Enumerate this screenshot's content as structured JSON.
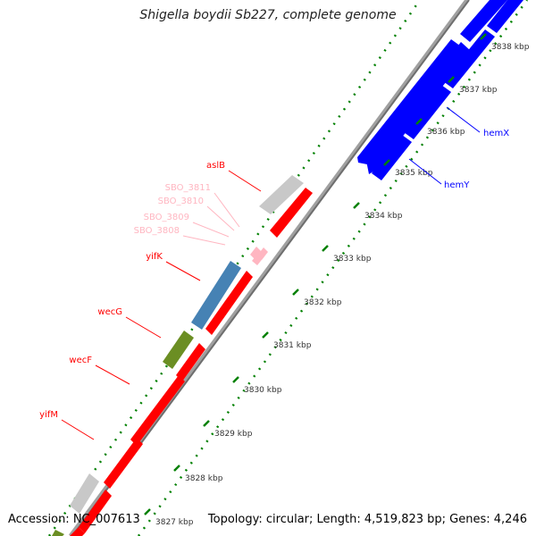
{
  "title": "Shigella boydii Sb227, complete genome",
  "accession": "Accession: NC_007613",
  "summary": "Topology: circular; Length: 4,519,823 bp; Genes: 4,246",
  "colors": {
    "red": "#ff0000",
    "blue": "#0000ff",
    "gray": "#c8c8c8",
    "steel": "#4682b4",
    "olive": "#6b8e23",
    "pink": "#ffb6c1",
    "dots": "#008000",
    "backbone": "#808080"
  },
  "ticks": [
    {
      "label": "3827 kbp"
    },
    {
      "label": "3828 kbp"
    },
    {
      "label": "3829 kbp"
    },
    {
      "label": "3830 kbp"
    },
    {
      "label": "3831 kbp"
    },
    {
      "label": "3832 kbp"
    },
    {
      "label": "3833 kbp"
    },
    {
      "label": "3834 kbp"
    },
    {
      "label": "3835 kbp"
    },
    {
      "label": "3836 kbp"
    },
    {
      "label": "3837 kbp"
    },
    {
      "label": "3838 kbp"
    }
  ],
  "gene_labels": [
    {
      "label": "aslB",
      "color": "red"
    },
    {
      "label": "SBO_3811",
      "color": "pink"
    },
    {
      "label": "SBO_3810",
      "color": "pink"
    },
    {
      "label": "SBO_3809",
      "color": "pink"
    },
    {
      "label": "SBO_3808",
      "color": "pink"
    },
    {
      "label": "yifK",
      "color": "red"
    },
    {
      "label": "wecG",
      "color": "red"
    },
    {
      "label": "wecF",
      "color": "red"
    },
    {
      "label": "yifM",
      "color": "red"
    },
    {
      "label": "hemX",
      "color": "blue"
    },
    {
      "label": "hemY",
      "color": "blue"
    }
  ]
}
